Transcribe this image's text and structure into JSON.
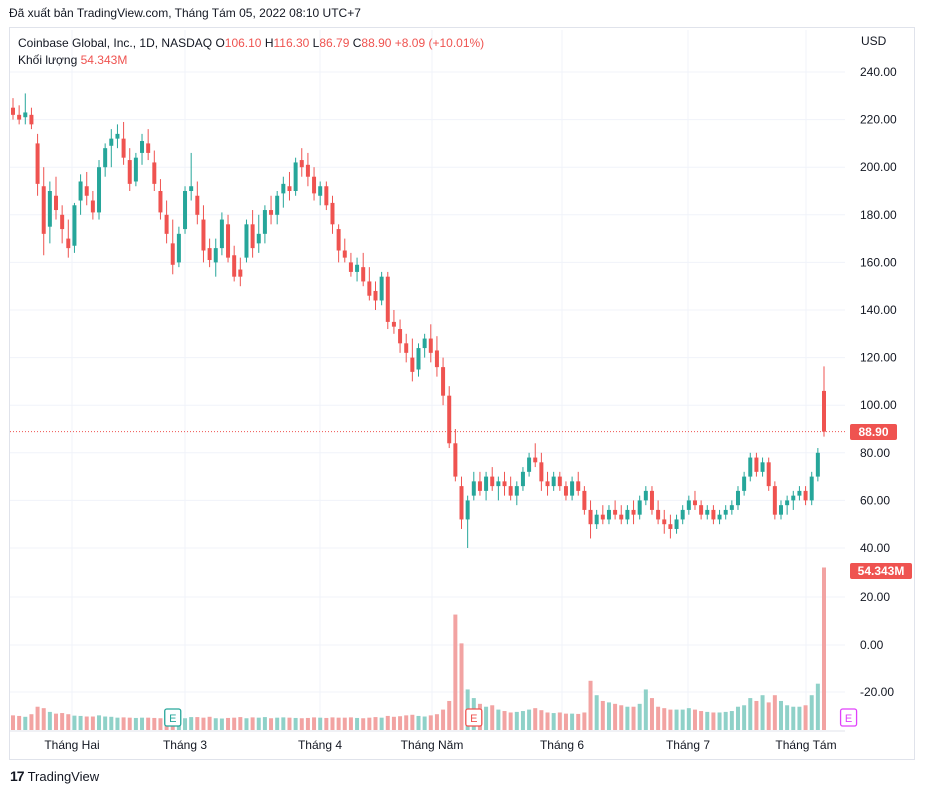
{
  "header": {
    "export_text": "Đã xuất bản TradingView.com, Tháng Tám 05, 2022 08:10 UTC+7"
  },
  "legend": {
    "symbol": "Coinbase Global, Inc., 1D, NASDAQ",
    "o_label": "O",
    "o_value": "106.10",
    "h_label": "H",
    "h_value": "116.30",
    "l_label": "L",
    "l_value": "86.79",
    "c_label": "C",
    "c_value": "88.90",
    "change": "+8.09 (+10.01%)",
    "volume_label": "Khối lượng",
    "volume_value": "54.343M"
  },
  "currency": "USD",
  "last_price_tag": "88.90",
  "last_volume_tag": "54.343M",
  "footer": {
    "logo_text": "TradingView"
  },
  "colors": {
    "up": "#26a69a",
    "down": "#ef5350",
    "up_vol": "#8fd1c8",
    "down_vol": "#f2a3a2",
    "grid": "#f0f3fa"
  },
  "chart_data": {
    "type": "candlestick",
    "price_ticks": [
      "240.00",
      "220.00",
      "200.00",
      "180.00",
      "160.00",
      "140.00",
      "120.00",
      "100.00",
      "80.00",
      "60.00",
      "40.00"
    ],
    "volume_ticks": [
      "20.00",
      "0.00",
      "-20.00"
    ],
    "x_labels": [
      "Tháng Hai",
      "Tháng 3",
      "Tháng 4",
      "Tháng Năm",
      "Tháng 6",
      "Tháng 7",
      "Tháng Tám"
    ],
    "events": [
      {
        "label": "E",
        "index": 26,
        "color": "#26a69a"
      },
      {
        "label": "E",
        "index": 75,
        "color": "#ef5350"
      },
      {
        "label": "E",
        "index": 136,
        "color": "#e040fb"
      }
    ],
    "candles": [
      [
        225,
        229,
        220,
        222,
        3.0
      ],
      [
        222,
        226,
        218,
        220,
        2.8
      ],
      [
        221,
        231,
        218,
        223,
        2.5
      ],
      [
        222,
        225,
        216,
        218,
        3.4
      ],
      [
        210,
        214,
        188,
        193,
        6.0
      ],
      [
        192,
        200,
        163,
        172,
        5.5
      ],
      [
        175,
        194,
        168,
        190,
        4.2
      ],
      [
        188,
        196,
        178,
        182,
        3.6
      ],
      [
        180,
        184,
        168,
        174,
        3.8
      ],
      [
        170,
        178,
        162,
        166,
        3.4
      ],
      [
        167,
        185,
        164,
        184,
        2.9
      ],
      [
        186,
        197,
        180,
        194,
        2.8
      ],
      [
        192,
        198,
        184,
        188,
        2.6
      ],
      [
        186,
        190,
        178,
        181,
        2.6
      ],
      [
        181,
        203,
        178,
        200,
        3.0
      ],
      [
        200,
        210,
        196,
        208,
        2.6
      ],
      [
        209,
        216,
        200,
        212,
        2.5
      ],
      [
        212,
        218,
        208,
        214,
        2.2
      ],
      [
        212,
        219,
        201,
        204,
        2.3
      ],
      [
        203,
        208,
        190,
        193,
        2.2
      ],
      [
        194,
        206,
        192,
        204,
        2.1
      ],
      [
        206,
        214,
        201,
        211,
        2.2
      ],
      [
        210,
        216,
        203,
        206,
        2.2
      ],
      [
        202,
        207,
        190,
        193,
        2.1
      ],
      [
        190,
        195,
        178,
        181,
        2.0
      ],
      [
        180,
        186,
        168,
        172,
        2.1
      ],
      [
        168,
        178,
        155,
        159,
        2.3
      ],
      [
        160,
        175,
        158,
        172,
        2.1
      ],
      [
        174,
        192,
        172,
        190,
        2.0
      ],
      [
        190,
        206,
        186,
        192,
        2.4
      ],
      [
        188,
        194,
        176,
        180,
        2.4
      ],
      [
        178,
        184,
        160,
        165,
        2.2
      ],
      [
        166,
        170,
        158,
        161,
        2.5
      ],
      [
        160,
        170,
        154,
        166,
        2.0
      ],
      [
        166,
        181,
        163,
        178,
        1.9
      ],
      [
        176,
        180,
        160,
        162,
        2.1
      ],
      [
        163,
        167,
        152,
        154,
        2.2
      ],
      [
        157,
        162,
        150,
        154,
        2.4
      ],
      [
        162,
        178,
        160,
        176,
        2.0
      ],
      [
        176,
        182,
        162,
        166,
        2.3
      ],
      [
        168,
        180,
        164,
        172,
        2.2
      ],
      [
        172,
        184,
        168,
        182,
        2.4
      ],
      [
        182,
        188,
        176,
        180,
        2.0
      ],
      [
        180,
        190,
        176,
        188,
        2.2
      ],
      [
        189,
        196,
        183,
        193,
        2.3
      ],
      [
        192,
        198,
        186,
        190,
        2.2
      ],
      [
        190,
        204,
        188,
        202,
        2.1
      ],
      [
        203,
        208,
        196,
        200,
        2.0
      ],
      [
        201,
        206,
        192,
        196,
        2.1
      ],
      [
        196,
        200,
        186,
        189,
        2.3
      ],
      [
        188,
        194,
        184,
        192,
        2.2
      ],
      [
        192,
        194,
        182,
        184,
        2.1
      ],
      [
        185,
        188,
        172,
        176,
        2.3
      ],
      [
        174,
        176,
        160,
        165,
        2.2
      ],
      [
        165,
        170,
        160,
        162,
        2.2
      ],
      [
        160,
        164,
        154,
        156,
        2.3
      ],
      [
        156,
        162,
        152,
        159,
        2.1
      ],
      [
        158,
        164,
        150,
        152,
        2.0
      ],
      [
        152,
        158,
        144,
        146,
        2.2
      ],
      [
        148,
        152,
        140,
        144,
        2.4
      ],
      [
        144,
        156,
        142,
        154,
        2.2
      ],
      [
        154,
        156,
        132,
        135,
        2.8
      ],
      [
        135,
        140,
        130,
        133,
        2.5
      ],
      [
        132,
        136,
        122,
        126,
        2.7
      ],
      [
        126,
        130,
        118,
        122,
        3.0
      ],
      [
        120,
        128,
        110,
        114,
        3.2
      ],
      [
        115,
        126,
        112,
        124,
        2.8
      ],
      [
        124,
        130,
        120,
        128,
        2.6
      ],
      [
        128,
        134,
        118,
        122,
        3.0
      ],
      [
        123,
        129,
        112,
        116,
        3.4
      ],
      [
        116,
        120,
        100,
        104,
        5.0
      ],
      [
        104,
        108,
        82,
        84,
        8.0
      ],
      [
        84,
        90,
        68,
        70,
        38.0
      ],
      [
        66,
        70,
        48,
        52,
        28.0
      ],
      [
        52,
        62,
        40,
        60,
        12.0
      ],
      [
        62,
        72,
        60,
        68,
        9.0
      ],
      [
        68,
        72,
        62,
        64,
        7.0
      ],
      [
        64,
        72,
        60,
        70,
        6.0
      ],
      [
        70,
        74,
        64,
        66,
        6.5
      ],
      [
        66,
        70,
        60,
        68,
        5.0
      ],
      [
        68,
        72,
        62,
        66,
        4.5
      ],
      [
        66,
        70,
        60,
        62,
        4.0
      ],
      [
        62,
        68,
        58,
        66,
        4.2
      ],
      [
        66,
        74,
        64,
        72,
        4.5
      ],
      [
        72,
        80,
        70,
        78,
        5.0
      ],
      [
        78,
        84,
        74,
        76,
        5.5
      ],
      [
        76,
        80,
        64,
        68,
        4.8
      ],
      [
        68,
        72,
        62,
        66,
        4.0
      ],
      [
        66,
        72,
        64,
        70,
        3.8
      ],
      [
        70,
        72,
        64,
        66,
        4.0
      ],
      [
        66,
        68,
        60,
        62,
        3.6
      ],
      [
        62,
        70,
        60,
        68,
        3.6
      ],
      [
        68,
        72,
        62,
        64,
        3.5
      ],
      [
        64,
        66,
        54,
        56,
        4.0
      ],
      [
        56,
        60,
        44,
        50,
        15.0
      ],
      [
        50,
        56,
        48,
        54,
        10.0
      ],
      [
        54,
        58,
        50,
        52,
        8.0
      ],
      [
        52,
        58,
        50,
        56,
        7.5
      ],
      [
        56,
        60,
        52,
        54,
        7.0
      ],
      [
        54,
        58,
        50,
        52,
        6.5
      ],
      [
        52,
        58,
        50,
        56,
        6.0
      ],
      [
        56,
        60,
        50,
        54,
        6.0
      ],
      [
        54,
        62,
        52,
        60,
        7.0
      ],
      [
        60,
        66,
        58,
        64,
        12.0
      ],
      [
        64,
        66,
        54,
        56,
        9.0
      ],
      [
        56,
        60,
        50,
        52,
        6.0
      ],
      [
        52,
        56,
        46,
        50,
        5.5
      ],
      [
        50,
        54,
        44,
        48,
        5.0
      ],
      [
        48,
        54,
        46,
        52,
        5.0
      ],
      [
        52,
        58,
        50,
        56,
        5.0
      ],
      [
        56,
        62,
        54,
        60,
        5.5
      ],
      [
        60,
        64,
        56,
        58,
        5.0
      ],
      [
        58,
        60,
        52,
        54,
        4.5
      ],
      [
        54,
        58,
        52,
        56,
        4.2
      ],
      [
        56,
        58,
        50,
        52,
        4.0
      ],
      [
        52,
        56,
        50,
        54,
        4.0
      ],
      [
        54,
        58,
        52,
        56,
        4.2
      ],
      [
        56,
        60,
        54,
        58,
        4.5
      ],
      [
        58,
        66,
        56,
        64,
        6.0
      ],
      [
        64,
        72,
        62,
        70,
        6.5
      ],
      [
        70,
        80,
        68,
        78,
        9.0
      ],
      [
        78,
        80,
        70,
        72,
        8.0
      ],
      [
        72,
        78,
        70,
        76,
        10.0
      ],
      [
        76,
        78,
        64,
        66,
        7.5
      ],
      [
        66,
        68,
        52,
        54,
        10.0
      ],
      [
        54,
        60,
        52,
        58,
        8.0
      ],
      [
        58,
        62,
        54,
        60,
        6.5
      ],
      [
        60,
        64,
        56,
        62,
        6.0
      ],
      [
        62,
        66,
        60,
        64,
        6.0
      ],
      [
        64,
        66,
        58,
        60,
        6.5
      ],
      [
        60,
        72,
        58,
        70,
        10.0
      ],
      [
        70,
        82,
        68,
        80,
        14.0
      ],
      [
        106,
        116.3,
        86.79,
        88.9,
        54.343
      ]
    ]
  }
}
